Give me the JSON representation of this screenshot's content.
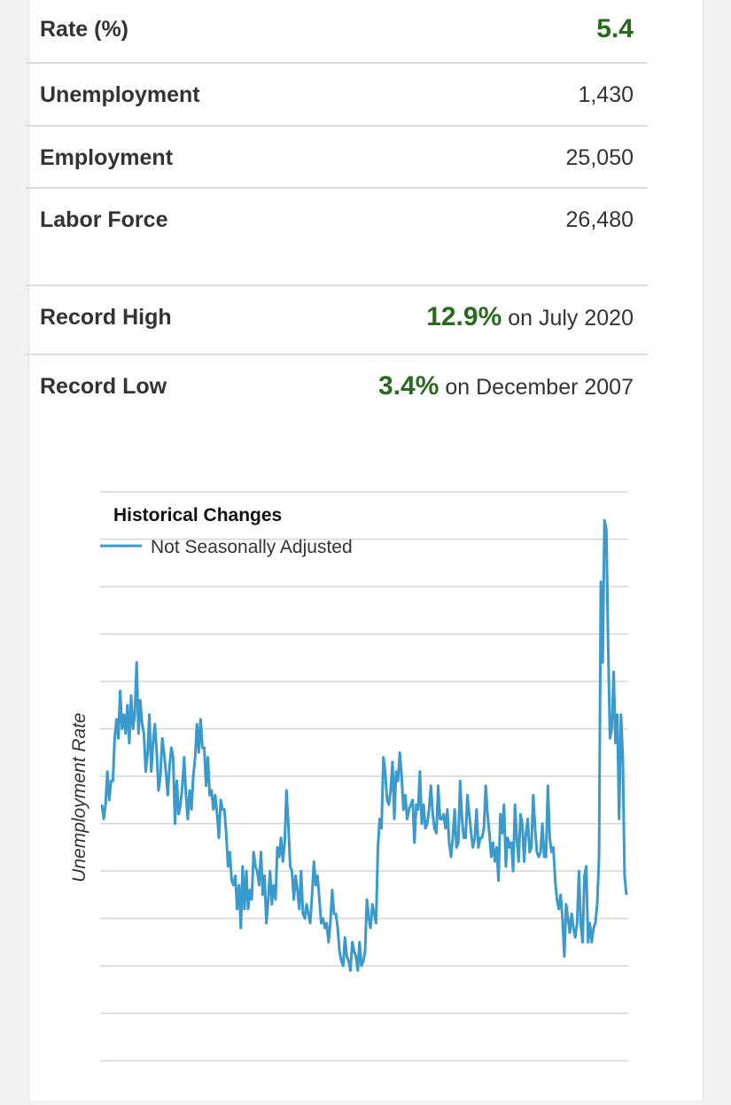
{
  "stats": {
    "rate_label": "Rate (%)",
    "rate_value": "5.4",
    "unemployment_label": "Unemployment",
    "unemployment_value": "1,430",
    "employment_label": "Employment",
    "employment_value": "25,050",
    "labor_force_label": "Labor Force",
    "labor_force_value": "26,480"
  },
  "records": {
    "high_label": "Record High",
    "high_value": "12.9%",
    "high_suffix": "on July 2020",
    "low_label": "Record Low",
    "low_value": "3.4%",
    "low_suffix": "on December 2007"
  },
  "colors": {
    "accent_green": "#2a6a1f",
    "line": "#3a9acb"
  },
  "chart_data": {
    "type": "line",
    "title": "Historical Changes",
    "ylabel": "Unemployment Rate",
    "xlabel": "",
    "grid": true,
    "legend_position": "top-left",
    "ylim": [
      1.5,
      13.5
    ],
    "series": [
      {
        "name": "Not Seasonally Adjusted",
        "values": [
          6.9,
          6.6,
          6.9,
          7.6,
          7.0,
          7.4,
          7.4,
          8.3,
          8.7,
          8.3,
          9.3,
          8.5,
          8.8,
          8.4,
          9.0,
          8.2,
          9.2,
          8.5,
          8.8,
          9.9,
          8.4,
          9.1,
          8.6,
          8.4,
          7.6,
          8.0,
          8.8,
          7.6,
          8.2,
          8.6,
          8.0,
          7.2,
          7.5,
          8.3,
          8.0,
          7.6,
          7.1,
          7.7,
          8.1,
          7.9,
          6.5,
          7.4,
          6.7,
          6.9,
          7.3,
          7.9,
          7.1,
          6.6,
          7.2,
          6.8,
          7.5,
          7.9,
          8.6,
          8.0,
          8.7,
          8.1,
          8.1,
          7.3,
          7.9,
          7.1,
          7.2,
          6.8,
          7.1,
          6.7,
          6.2,
          7.0,
          6.8,
          6.8,
          6.3,
          5.6,
          5.9,
          5.3,
          5.2,
          5.4,
          4.7,
          5.2,
          4.3,
          5.6,
          4.7,
          5.5,
          4.7,
          5.1,
          4.9,
          5.9,
          5.6,
          5.5,
          5.2,
          5.9,
          5.0,
          5.4,
          4.4,
          4.9,
          5.5,
          4.8,
          5.2,
          4.9,
          6.0,
          5.8,
          6.2,
          5.7,
          6.1,
          7.2,
          6.5,
          5.6,
          5.5,
          4.9,
          5.4,
          5.1,
          4.7,
          5.5,
          4.6,
          4.5,
          4.8,
          4.6,
          4.4,
          5.0,
          5.7,
          5.2,
          5.4,
          4.9,
          4.4,
          4.5,
          4.3,
          4.4,
          4.0,
          4.4,
          5.1,
          4.6,
          4.6,
          4.3,
          3.8,
          3.6,
          3.5,
          4.1,
          3.7,
          3.6,
          3.4,
          4.0,
          3.8,
          3.7,
          3.4,
          4.0,
          3.5,
          3.6,
          3.8,
          4.9,
          4.5,
          4.3,
          4.8,
          4.6,
          4.4,
          6.0,
          6.6,
          6.4,
          7.9,
          7.6,
          7.0,
          6.9,
          7.2,
          7.8,
          6.6,
          7.6,
          7.4,
          8.0,
          7.5,
          6.8,
          7.1,
          6.6,
          6.8,
          6.9,
          7.0,
          6.1,
          6.9,
          6.8,
          7.6,
          6.5,
          6.9,
          6.4,
          6.5,
          6.8,
          7.3,
          6.7,
          6.4,
          6.3,
          7.3,
          6.6,
          6.6,
          6.7,
          6.4,
          6.8,
          6.1,
          5.8,
          6.2,
          6.8,
          6.0,
          6.1,
          7.4,
          6.6,
          6.2,
          6.2,
          7.1,
          6.7,
          6.3,
          6.0,
          6.2,
          6.8,
          6.0,
          6.2,
          6.2,
          6.4,
          7.3,
          6.7,
          6.3,
          5.8,
          6.1,
          5.7,
          6.0,
          5.3,
          6.7,
          6.3,
          6.9,
          5.6,
          6.2,
          6.0,
          6.1,
          5.5,
          6.9,
          6.2,
          5.7,
          6.7,
          6.5,
          5.7,
          6.3,
          6.6,
          5.9,
          6.0,
          7.1,
          6.4,
          5.9,
          5.8,
          5.9,
          6.5,
          5.8,
          5.8,
          7.3,
          6.2,
          5.9,
          6.0,
          5.3,
          4.9,
          4.7,
          5.0,
          4.5,
          3.7,
          4.8,
          4.5,
          4.2,
          4.6,
          4.3,
          4.1,
          4.4,
          5.5,
          4.4,
          4.0,
          5.4,
          5.6,
          4.0,
          4.4,
          4.0,
          4.3,
          4.4,
          4.8,
          5.8,
          11.6,
          9.9,
          12.9,
          12.7,
          10.2,
          8.3,
          8.5,
          9.7,
          8.2,
          8.8,
          6.6,
          8.8,
          7.9,
          5.4,
          5.0
        ]
      }
    ]
  }
}
